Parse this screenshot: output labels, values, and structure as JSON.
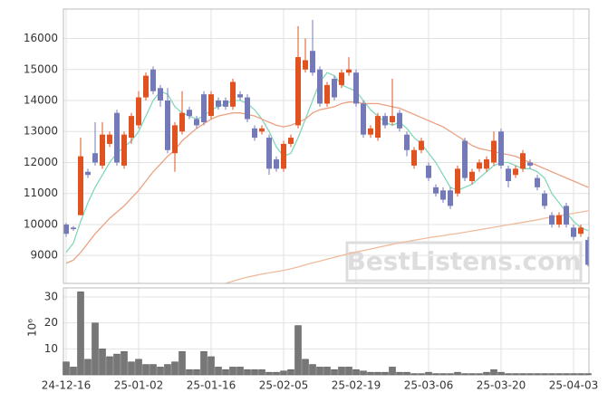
{
  "chart_data": [
    {
      "type": "candlestick",
      "open": [
        10000,
        9900,
        10300,
        11700,
        12300,
        11900,
        12600,
        13600,
        11900,
        12800,
        13200,
        14100,
        15000,
        14400,
        14000,
        12300,
        13000,
        13700,
        13400,
        14200,
        13500,
        14000,
        14000,
        13800,
        14200,
        14100,
        13100,
        13000,
        12800,
        12100,
        11800,
        12600,
        13200,
        15000,
        15600,
        15000,
        13900,
        14700,
        14500,
        14900,
        14900,
        13900,
        12900,
        12800,
        13500,
        13300,
        13600,
        12900,
        11900,
        12400,
        11900,
        11200,
        11100,
        11100,
        11000,
        12700,
        11400,
        11800,
        11800,
        12000,
        13000,
        11800,
        11600,
        11800,
        12000,
        11500,
        11000,
        10300,
        10000,
        10600,
        9900,
        9700,
        9500
      ],
      "high": [
        10050,
        9950,
        12800,
        11800,
        13300,
        13300,
        13000,
        13700,
        13000,
        13600,
        14300,
        14900,
        15100,
        14500,
        14400,
        13300,
        14300,
        13800,
        13500,
        14300,
        14300,
        14100,
        14100,
        14700,
        14300,
        14200,
        13200,
        13200,
        12900,
        12200,
        12700,
        12900,
        16400,
        16000,
        16600,
        15100,
        14600,
        14800,
        15000,
        15400,
        15000,
        14000,
        13200,
        13600,
        13600,
        14700,
        13700,
        13000,
        12500,
        12800,
        12000,
        11300,
        11200,
        11200,
        11900,
        12800,
        11800,
        12100,
        12200,
        13000,
        13100,
        11900,
        11900,
        12400,
        12100,
        11600,
        11100,
        10400,
        10400,
        10700,
        10000,
        10000,
        9600
      ],
      "low": [
        9600,
        9800,
        10300,
        11500,
        11900,
        11800,
        12500,
        11900,
        11800,
        12600,
        13100,
        14000,
        14200,
        13800,
        12300,
        11700,
        12900,
        13400,
        13100,
        13200,
        13400,
        13700,
        13700,
        13700,
        14000,
        13300,
        12700,
        12900,
        11600,
        11700,
        11700,
        12500,
        13100,
        14900,
        14800,
        13800,
        13800,
        14000,
        14400,
        14800,
        13800,
        12800,
        12800,
        12700,
        13100,
        13200,
        13000,
        12200,
        11800,
        12300,
        11400,
        10900,
        10700,
        10500,
        10900,
        11400,
        11300,
        11700,
        11700,
        11900,
        11800,
        11200,
        11500,
        11700,
        11800,
        11100,
        10500,
        9900,
        9900,
        9900,
        9500,
        9600,
        8650
      ],
      "close": [
        9700,
        9850,
        12200,
        11600,
        12000,
        12900,
        12900,
        12000,
        12900,
        13500,
        14100,
        14800,
        14300,
        14000,
        12400,
        13200,
        13600,
        13500,
        13200,
        13300,
        14200,
        13800,
        13800,
        14600,
        14100,
        13400,
        12800,
        13100,
        11800,
        11800,
        12600,
        12800,
        15400,
        15300,
        14900,
        13900,
        14500,
        14100,
        14900,
        15000,
        13900,
        12900,
        13100,
        13500,
        13200,
        13500,
        13100,
        12400,
        12400,
        12700,
        11500,
        11000,
        10800,
        10600,
        11800,
        11500,
        11700,
        12000,
        12100,
        12700,
        11900,
        11400,
        11800,
        12300,
        11900,
        11200,
        10600,
        10000,
        10300,
        10000,
        9600,
        9900,
        8700
      ],
      "up_color": "#e0521f",
      "down_color": "#7479b8",
      "lines": [
        {
          "color": "#86d6bb",
          "values": [
            9100,
            9400,
            10100,
            10700,
            11200,
            11600,
            12000,
            12300,
            12500,
            12700,
            13000,
            13500,
            14000,
            14300,
            14200,
            13800,
            13600,
            13500,
            13400,
            13500,
            13700,
            13800,
            13900,
            14000,
            14000,
            13900,
            13700,
            13400,
            13000,
            12500,
            12200,
            12300,
            12800,
            13400,
            14000,
            14600,
            14900,
            14800,
            14500,
            14400,
            14300,
            14000,
            13700,
            13500,
            13300,
            13200,
            13300,
            13100,
            12800,
            12600,
            12300,
            12000,
            11600,
            11200,
            11100,
            11200,
            11300,
            11500,
            11700,
            11900,
            12000,
            12000,
            11900,
            11800,
            11800,
            11700,
            11500,
            11000,
            10700,
            10400,
            10100,
            9900,
            9800
          ]
        },
        {
          "color": "#e9a283",
          "values": [
            8750,
            8850,
            9100,
            9400,
            9700,
            9950,
            10200,
            10400,
            10600,
            10850,
            11100,
            11400,
            11700,
            11950,
            12200,
            12400,
            12700,
            12900,
            13100,
            13250,
            13400,
            13500,
            13550,
            13600,
            13600,
            13550,
            13500,
            13400,
            13300,
            13200,
            13150,
            13200,
            13300,
            13400,
            13600,
            13700,
            13750,
            13800,
            13900,
            13950,
            13950,
            13900,
            13900,
            13900,
            13850,
            13800,
            13750,
            13650,
            13550,
            13450,
            13350,
            13250,
            13150,
            13000,
            12850,
            12700,
            12550,
            12450,
            12400,
            12350,
            12300,
            12250,
            12200,
            12100,
            12000,
            11900,
            11800,
            11700,
            11600,
            11500,
            11400,
            11300,
            11200
          ]
        },
        {
          "color": "#efbb9c",
          "values": [
            null,
            null,
            null,
            null,
            null,
            null,
            null,
            null,
            null,
            null,
            null,
            null,
            null,
            null,
            null,
            null,
            null,
            null,
            null,
            null,
            null,
            null,
            8100,
            8170,
            8240,
            8300,
            8350,
            8400,
            8440,
            8480,
            8520,
            8570,
            8630,
            8700,
            8760,
            8820,
            8880,
            8940,
            9000,
            9060,
            9110,
            9160,
            9210,
            9260,
            9310,
            9360,
            9410,
            9450,
            9490,
            9530,
            9570,
            9610,
            9640,
            9680,
            9710,
            9750,
            9790,
            9830,
            9870,
            9910,
            9950,
            9990,
            10030,
            10070,
            10110,
            10150,
            10200,
            10240,
            10280,
            10320,
            10360,
            10400,
            10440
          ]
        }
      ],
      "ylim": [
        8100,
        16950
      ],
      "yticks": [
        9000,
        10000,
        11000,
        12000,
        13000,
        14000,
        15000,
        16000
      ],
      "grid": true,
      "watermark": "BestListens.com"
    },
    {
      "type": "bar",
      "y_label": "10⁶",
      "color": "#777777",
      "categories": [
        "24-12-16",
        null,
        null,
        null,
        null,
        null,
        null,
        null,
        null,
        null,
        "25-01-02",
        null,
        null,
        null,
        null,
        null,
        null,
        null,
        null,
        null,
        "25-01-16",
        null,
        null,
        null,
        null,
        null,
        null,
        null,
        null,
        null,
        "25-02-05",
        null,
        null,
        null,
        null,
        null,
        null,
        null,
        null,
        null,
        "25-02-19",
        null,
        null,
        null,
        null,
        null,
        null,
        null,
        null,
        null,
        "25-03-06",
        null,
        null,
        null,
        null,
        null,
        null,
        null,
        null,
        null,
        "25-03-20",
        null,
        null,
        null,
        null,
        null,
        null,
        null,
        null,
        null,
        "25-04-03",
        null,
        null
      ],
      "values": [
        5,
        3,
        32,
        6,
        20,
        10,
        7,
        8,
        9,
        5,
        6,
        4,
        4,
        3,
        4,
        5,
        9,
        2,
        2,
        9,
        7,
        3,
        2,
        3,
        3,
        2,
        2,
        2,
        1,
        1,
        1.5,
        2,
        19,
        6,
        4,
        3,
        3,
        2,
        3,
        3,
        2,
        1.5,
        1,
        1,
        1,
        3,
        1,
        1,
        0.5,
        0.5,
        1,
        0.5,
        0.5,
        0.5,
        1,
        0.5,
        0.5,
        0.5,
        1,
        2,
        1,
        0.5,
        0.5,
        0.5,
        0.5,
        0.5,
        0.5,
        0.5,
        0.5,
        0.5,
        0.5,
        0.5,
        0.5
      ],
      "ylim": [
        0,
        33.5
      ],
      "yticks": [
        10,
        20,
        30
      ],
      "grid": true
    }
  ]
}
